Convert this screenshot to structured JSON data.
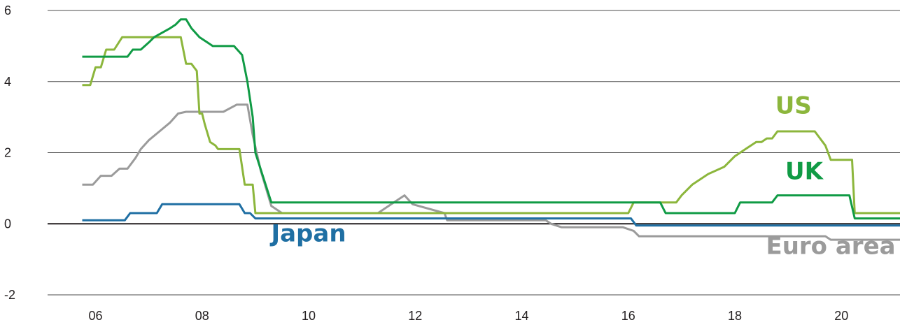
{
  "chart_data": {
    "type": "line",
    "title": "",
    "xlabel": "",
    "ylabel": "",
    "ylim": [
      -2,
      6
    ],
    "xlim": [
      2005.1,
      2021.1
    ],
    "yticks": [
      -2,
      0,
      2,
      4,
      6
    ],
    "xticks": [
      {
        "value": 2006,
        "label": "06"
      },
      {
        "value": 2008,
        "label": "08"
      },
      {
        "value": 2010,
        "label": "10"
      },
      {
        "value": 2012,
        "label": "12"
      },
      {
        "value": 2014,
        "label": "14"
      },
      {
        "value": 2016,
        "label": "16"
      },
      {
        "value": 2018,
        "label": "18"
      },
      {
        "value": 2020,
        "label": "20"
      }
    ],
    "grid": "horizontal",
    "legend": "inline labels",
    "series": [
      {
        "name": "US",
        "color": "#8cb63c",
        "x": [
          2005.75,
          2005.9,
          2006.0,
          2006.1,
          2006.2,
          2006.35,
          2006.5,
          2006.6,
          2007.6,
          2007.7,
          2007.8,
          2007.9,
          2007.95,
          2008.0,
          2008.05,
          2008.15,
          2008.25,
          2008.3,
          2008.45,
          2008.7,
          2008.8,
          2008.95,
          2009.0,
          2009.5,
          2011.5,
          2011.6,
          2011.7,
          2011.85,
          2011.95,
          2016.0,
          2016.1,
          2016.9,
          2017.0,
          2017.2,
          2017.4,
          2017.5,
          2017.8,
          2018.0,
          2018.2,
          2018.4,
          2018.5,
          2018.6,
          2018.7,
          2018.8,
          2018.9,
          2019.1,
          2019.5,
          2019.7,
          2019.8,
          2020.1,
          2020.2,
          2020.25,
          2020.3,
          2021.1
        ],
        "y": [
          3.9,
          3.9,
          4.4,
          4.4,
          4.9,
          4.9,
          5.25,
          5.25,
          5.25,
          4.5,
          4.5,
          4.3,
          3.1,
          3.1,
          2.8,
          2.3,
          2.2,
          2.1,
          2.1,
          2.1,
          1.1,
          1.1,
          0.3,
          0.3,
          0.3,
          0.3,
          0.3,
          0.3,
          0.3,
          0.3,
          0.6,
          0.6,
          0.8,
          1.1,
          1.3,
          1.4,
          1.6,
          1.9,
          2.1,
          2.3,
          2.3,
          2.4,
          2.4,
          2.6,
          2.6,
          2.6,
          2.6,
          2.2,
          1.8,
          1.8,
          1.8,
          0.3,
          0.3,
          0.3
        ]
      },
      {
        "name": "UK",
        "color": "#109b45",
        "x": [
          2005.75,
          2006.6,
          2006.7,
          2006.85,
          2007.0,
          2007.1,
          2007.4,
          2007.5,
          2007.6,
          2007.7,
          2007.8,
          2007.95,
          2008.1,
          2008.2,
          2008.3,
          2008.4,
          2008.6,
          2008.75,
          2008.85,
          2008.95,
          2009.0,
          2009.3,
          2016.6,
          2016.7,
          2018.0,
          2018.1,
          2018.7,
          2018.8,
          2020.15,
          2020.25,
          2021.1
        ],
        "y": [
          4.7,
          4.7,
          4.9,
          4.9,
          5.1,
          5.25,
          5.5,
          5.6,
          5.75,
          5.75,
          5.5,
          5.25,
          5.1,
          5.0,
          5.0,
          5.0,
          5.0,
          4.75,
          4.0,
          3.0,
          2.0,
          0.6,
          0.6,
          0.3,
          0.3,
          0.6,
          0.6,
          0.8,
          0.8,
          0.15,
          0.15
        ]
      },
      {
        "name": "Japan",
        "color": "#1f6fa3",
        "x": [
          2005.75,
          2006.55,
          2006.65,
          2007.15,
          2007.25,
          2008.7,
          2008.8,
          2008.9,
          2009.0,
          2016.05,
          2016.15,
          2021.1
        ],
        "y": [
          0.1,
          0.1,
          0.3,
          0.3,
          0.55,
          0.55,
          0.3,
          0.3,
          0.15,
          0.15,
          -0.05,
          -0.05
        ]
      },
      {
        "name": "Euro area",
        "color": "#9b9b9b",
        "x": [
          2005.75,
          2005.95,
          2006.1,
          2006.3,
          2006.45,
          2006.6,
          2006.75,
          2006.85,
          2007.0,
          2007.2,
          2007.4,
          2007.55,
          2007.7,
          2008.4,
          2008.65,
          2008.85,
          2008.95,
          2009.1,
          2009.3,
          2009.5,
          2011.3,
          2011.55,
          2011.8,
          2011.95,
          2012.55,
          2012.6,
          2014.45,
          2014.55,
          2014.75,
          2015.9,
          2016.1,
          2016.2,
          2019.7,
          2019.8,
          2021.1
        ],
        "y": [
          1.1,
          1.1,
          1.35,
          1.35,
          1.55,
          1.55,
          1.85,
          2.1,
          2.35,
          2.6,
          2.85,
          3.1,
          3.15,
          3.15,
          3.35,
          3.35,
          2.5,
          1.5,
          0.5,
          0.3,
          0.3,
          0.55,
          0.8,
          0.55,
          0.3,
          0.1,
          0.1,
          0.0,
          -0.1,
          -0.1,
          -0.2,
          -0.35,
          -0.35,
          -0.45,
          -0.45
        ]
      }
    ],
    "labels": [
      {
        "text": "US",
        "series": "US",
        "x": 2019.1,
        "y": 3.1
      },
      {
        "text": "UK",
        "series": "UK",
        "x": 2019.3,
        "y": 1.25
      },
      {
        "text": "Japan",
        "series": "Japan",
        "x": 2010.0,
        "y": -0.5
      },
      {
        "text": "Euro area",
        "series": "Euro area",
        "x": 2019.8,
        "y": -0.85
      }
    ]
  }
}
